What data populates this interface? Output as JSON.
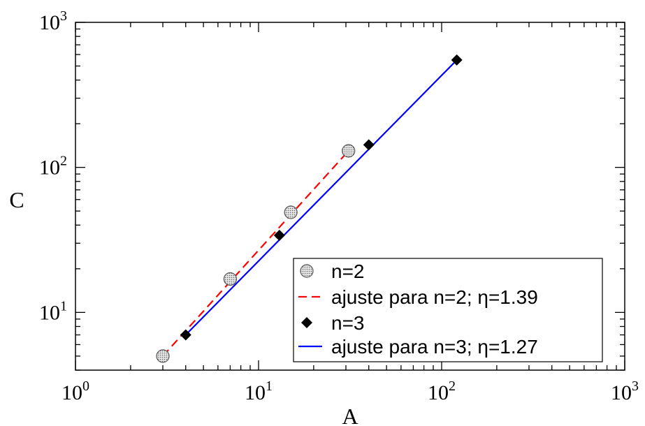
{
  "chart_data": {
    "type": "scatter",
    "xlabel": "A",
    "ylabel": "C",
    "xscale": "log",
    "yscale": "log",
    "xlim": [
      1,
      1000
    ],
    "ylim": [
      4,
      1000
    ],
    "x_ticks": [
      {
        "value": 1,
        "base": "10",
        "exp": "0"
      },
      {
        "value": 10,
        "base": "10",
        "exp": "1"
      },
      {
        "value": 100,
        "base": "10",
        "exp": "2"
      },
      {
        "value": 1000,
        "base": "10",
        "exp": "3"
      }
    ],
    "y_ticks": [
      {
        "value": 10,
        "base": "10",
        "exp": "1"
      },
      {
        "value": 100,
        "base": "10",
        "exp": "2"
      },
      {
        "value": 1000,
        "base": "10",
        "exp": "3"
      }
    ],
    "grid": false,
    "legend_position": "bottom-right",
    "series": [
      {
        "name": "n=2",
        "kind": "points",
        "marker": "circle-dotted",
        "color": "#555555",
        "x": [
          3.0,
          7.0,
          15.0,
          31.0
        ],
        "y": [
          5.0,
          17.0,
          49.0,
          130.0
        ]
      },
      {
        "name": "ajuste para n=2; η=1.39",
        "kind": "line",
        "style": "dashed",
        "color": "#ff0000",
        "x": [
          3.0,
          31.0
        ],
        "y": [
          5.0,
          130.0
        ]
      },
      {
        "name": "n=3",
        "kind": "points",
        "marker": "diamond",
        "color": "#000000",
        "x": [
          4.0,
          13.0,
          40.0,
          121.0
        ],
        "y": [
          7.0,
          34.0,
          143.0,
          550.0
        ]
      },
      {
        "name": "ajuste para n=3; η=1.27",
        "kind": "line",
        "style": "solid",
        "color": "#0000ff",
        "x": [
          4.0,
          121.0
        ],
        "y": [
          7.0,
          550.0
        ]
      }
    ]
  }
}
